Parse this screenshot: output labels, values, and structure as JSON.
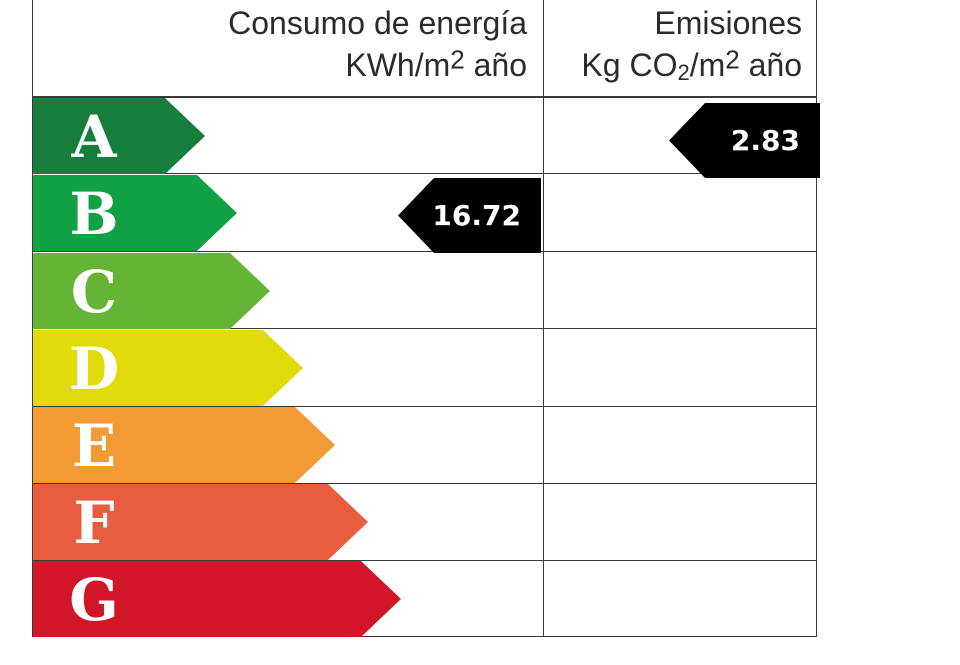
{
  "headers": {
    "energy_line1": "Consumo de energía",
    "energy_line2_prefix": "KWh/m",
    "energy_line2_sup": "2",
    "energy_line2_suffix": " año",
    "emissions_line1": "Emisiones",
    "emissions_line2_prefix": "Kg CO",
    "emissions_line2_sub": "2",
    "emissions_line2_mid": "/m",
    "emissions_line2_sup": "2",
    "emissions_line2_suffix": " año"
  },
  "ratings": [
    {
      "letter": "A",
      "color": "#167d3d"
    },
    {
      "letter": "B",
      "color": "#10a145"
    },
    {
      "letter": "C",
      "color": "#66b435"
    },
    {
      "letter": "D",
      "color": "#e2db0b"
    },
    {
      "letter": "E",
      "color": "#f29a33"
    },
    {
      "letter": "F",
      "color": "#e95d3f"
    },
    {
      "letter": "G",
      "color": "#d11727"
    }
  ],
  "energy_consumption": {
    "value": "16.72",
    "rating": "B"
  },
  "emissions": {
    "value": "2.83",
    "rating": "A"
  }
}
